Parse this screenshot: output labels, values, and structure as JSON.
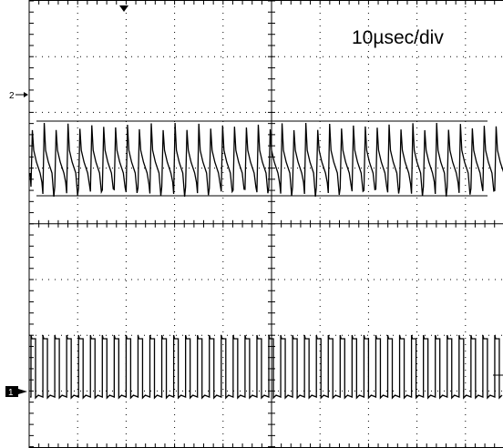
{
  "scope": {
    "timebase": "10µsec/div",
    "channels": [
      {
        "label": "2"
      },
      {
        "label": "1"
      }
    ]
  }
}
